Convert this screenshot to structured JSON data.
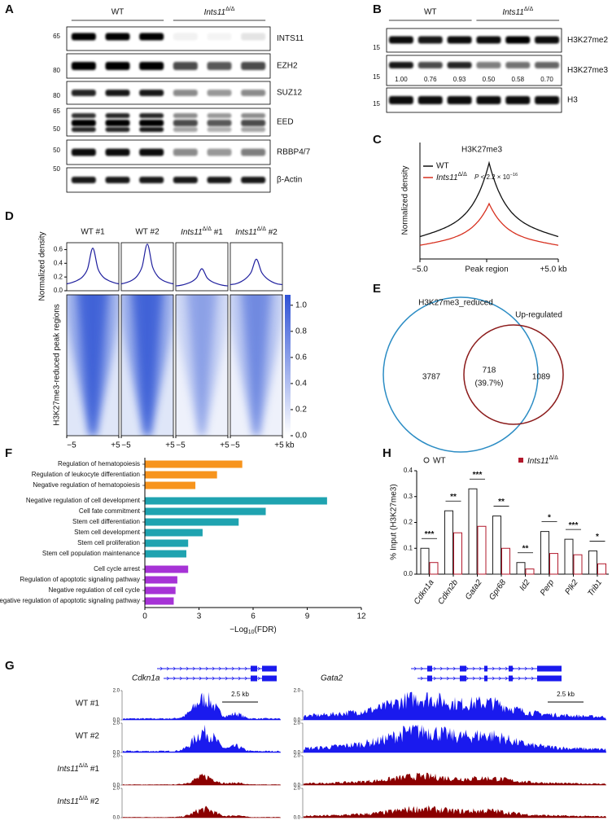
{
  "panels": {
    "A": {
      "label": "A",
      "groups": [
        "WT",
        {
          "gene": "Ints11",
          "sup": "Δ/Δ"
        }
      ],
      "blots": [
        {
          "name": "INTS11",
          "markers": [
            65
          ]
        },
        {
          "name": "EZH2",
          "markers": [
            80
          ]
        },
        {
          "name": "SUZ12",
          "markers": [
            80
          ]
        },
        {
          "name": "EED",
          "markers": [
            65,
            50
          ]
        },
        {
          "name": "RBBP4/7",
          "markers": [
            50
          ]
        },
        {
          "name": "β-Actin",
          "markers": [
            50
          ]
        }
      ]
    },
    "B": {
      "label": "B",
      "groups": [
        "WT",
        {
          "gene": "Ints11",
          "sup": "Δ/Δ"
        }
      ],
      "blots": [
        {
          "name": "H3K27me2",
          "markers": [
            15
          ]
        },
        {
          "name": "H3K27me3",
          "markers": [
            15
          ],
          "quantification": [
            "1.00",
            "0.76",
            "0.93",
            "0.50",
            "0.58",
            "0.70"
          ]
        },
        {
          "name": "H3",
          "markers": [
            15
          ]
        }
      ]
    },
    "C": {
      "label": "C",
      "title": "H3K27me3",
      "legend": [
        "WT",
        {
          "gene": "Ints11",
          "sup": "Δ/Δ"
        }
      ],
      "colors": [
        "#111111",
        "#d7301f"
      ],
      "pvalue": {
        "lead": "P",
        "text": " < 2.2 × 10",
        "sup": "−16"
      },
      "ylabel": "Normalized density",
      "xlabels": [
        "−5.0",
        "Peak region",
        "+5.0 kb"
      ]
    },
    "E": {
      "label": "E",
      "sets": [
        "H3K27me3_reduced",
        "Up-regulated"
      ],
      "colors": [
        "#2b8cc4",
        "#8b1a1a"
      ],
      "only_first": "3787",
      "overlap": "718",
      "overlap_share": "(39.7%)",
      "only_second": "1089"
    },
    "G": {
      "label": "G",
      "genes": [
        "Cdkn1a",
        "Gata2"
      ],
      "rows": [
        "WT #1",
        "WT #2",
        {
          "gene": "Ints11",
          "sup": "Δ/Δ",
          "rest": " #1"
        },
        {
          "gene": "Ints11",
          "sup": "Δ/Δ",
          "rest": " #2"
        }
      ],
      "colors": [
        "#1a1aee",
        "#1a1aee",
        "#8b0000",
        "#8b0000"
      ],
      "ylim": [
        0,
        2
      ],
      "yticks": [
        {
          "value": 0,
          "label": "0.0"
        },
        {
          "value": 2,
          "label": "2.0"
        }
      ],
      "scale": "2.5 kb"
    }
  },
  "chart_data": [
    {
      "type": "line",
      "label": "D",
      "x": [
        -5,
        -4,
        -3,
        -2,
        -1,
        0,
        1,
        2,
        3,
        4,
        5
      ],
      "xlim": [
        -5,
        5
      ],
      "xticks": [
        {
          "value": -5,
          "label": "−5"
        },
        {
          "value": 5,
          "label": "+5"
        }
      ],
      "xunit": "kb",
      "ylim": [
        0,
        0.7
      ],
      "yticks": [
        {
          "value": 0,
          "label": "0.0"
        },
        0.2,
        0.4,
        0.6
      ],
      "ylabel": "Normalized density",
      "heatmap_ylabel": "H3K27me3-reduced peak regions",
      "series": [
        {
          "name": "WT #1",
          "color": "#1f1f9e",
          "values": [
            0.1,
            0.12,
            0.15,
            0.2,
            0.32,
            0.62,
            0.32,
            0.2,
            0.15,
            0.12,
            0.1
          ]
        },
        {
          "name": "WT #2",
          "color": "#1f1f9e",
          "values": [
            0.1,
            0.12,
            0.15,
            0.21,
            0.35,
            0.68,
            0.35,
            0.21,
            0.15,
            0.12,
            0.1
          ]
        },
        {
          "name": {
            "gene": "Ints11",
            "sup": "Δ/Δ",
            "rest": " #1"
          },
          "color": "#1f1f9e",
          "values": [
            0.07,
            0.08,
            0.1,
            0.13,
            0.19,
            0.32,
            0.19,
            0.13,
            0.1,
            0.08,
            0.07
          ]
        },
        {
          "name": {
            "gene": "Ints11",
            "sup": "Δ/Δ",
            "rest": " #2"
          },
          "color": "#1f1f9e",
          "values": [
            0.09,
            0.1,
            0.13,
            0.18,
            0.27,
            0.46,
            0.27,
            0.18,
            0.13,
            0.1,
            0.09
          ]
        }
      ],
      "colorbar": {
        "lim": [
          0,
          1.08
        ],
        "ticks": [
          {
            "value": 0,
            "label": "0.0"
          },
          0.2,
          0.4,
          0.6,
          0.8,
          {
            "value": 1,
            "label": "1.0"
          }
        ]
      }
    },
    {
      "type": "hbar",
      "label": "F",
      "categories": [
        "Regulation of hematopoiesis",
        "Regulation of leukocyte differentiation",
        "Negative regulation of hematopoiesis",
        "Negative regulation of cell development",
        "Cell fate commitment",
        "Stem cell differentiation",
        "Stem cell development",
        "Stem cell proliferation",
        "Stem cell population maintenance",
        "Cell cycle arrest",
        "Regulation of apoptotic signaling pathway",
        "Negative regulation of cell cycle",
        "Negative regulation of apoptotic signaling pathway"
      ],
      "values": [
        5.4,
        4.0,
        2.8,
        10.1,
        6.7,
        5.2,
        3.2,
        2.4,
        2.3,
        2.4,
        1.8,
        1.7,
        1.6
      ],
      "colors": [
        "#f7941d",
        "#f7941d",
        "#f7941d",
        "#1fa3b0",
        "#1fa3b0",
        "#1fa3b0",
        "#1fa3b0",
        "#1fa3b0",
        "#1fa3b0",
        "#a633d6",
        "#a633d6",
        "#a633d6",
        "#a633d6"
      ],
      "xlim": [
        0,
        12
      ],
      "xticks": [
        0,
        3,
        6,
        9,
        12
      ],
      "xlabel": {
        "text": "−Log",
        "sub": "10",
        "rest": "(FDR)"
      }
    },
    {
      "type": "bar",
      "label": "H",
      "categories": [
        "Cdkn1a",
        "Cdkn2b",
        "Gata2",
        "Gpr68",
        "Id2",
        "Perp",
        "Plk2",
        "Trib1"
      ],
      "series": [
        {
          "name": "WT",
          "color": "#222222",
          "values": [
            0.1,
            0.245,
            0.33,
            0.225,
            0.045,
            0.165,
            0.135,
            0.09
          ]
        },
        {
          "name": {
            "gene": "Ints11",
            "sup": "Δ/Δ"
          },
          "color": "#b2182b",
          "values": [
            0.045,
            0.16,
            0.185,
            0.1,
            0.02,
            0.08,
            0.075,
            0.04
          ]
        }
      ],
      "ylim": [
        0,
        0.4
      ],
      "yticks": [
        {
          "value": 0,
          "label": "0.0"
        },
        0.1,
        0.2,
        0.3,
        0.4
      ],
      "ylabel": "% Input (H3K27me3)",
      "significance": [
        "***",
        "**",
        "***",
        "**",
        "**",
        "*",
        "***",
        "*"
      ]
    }
  ]
}
